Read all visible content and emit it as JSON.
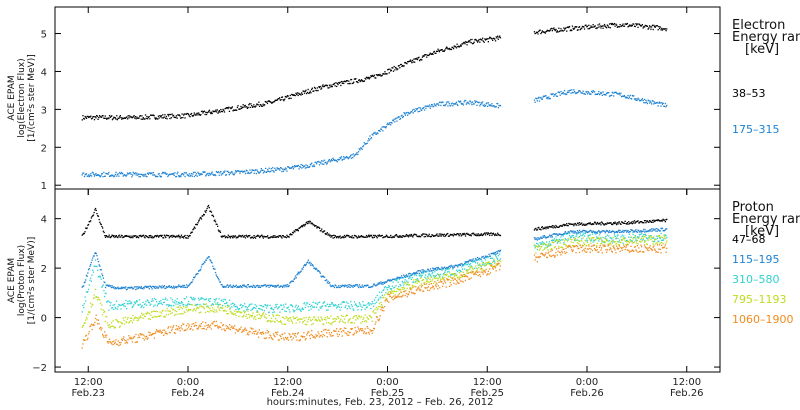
{
  "chart_data": [
    {
      "type": "scatter",
      "panel": "electron",
      "ylabel_lines": [
        "ACE EPAM",
        "log(Electron Flux)",
        "[1/(cm²s ster MeV)]"
      ],
      "ylim": [
        0.9,
        5.7
      ],
      "yticks": [
        1,
        2,
        3,
        4,
        5
      ],
      "legend_title": [
        "Electron",
        "Energy ranges",
        "[keV]"
      ],
      "series": [
        {
          "name": "38–53",
          "color": "#000000",
          "x": [
            0.8,
            2.4,
            4.0,
            6.5,
            8.0,
            9.5,
            10.5,
            11.5,
            12.5,
            13.4,
            13.9,
            14.4,
            15.5,
            17.0,
            18.4
          ],
          "y": [
            2.8,
            2.8,
            2.85,
            3.2,
            3.6,
            3.85,
            4.2,
            4.55,
            4.8,
            4.9,
            null,
            5.05,
            5.15,
            5.25,
            5.15
          ]
        },
        {
          "name": "175–315",
          "color": "#1e82d2",
          "x": [
            0.8,
            2.4,
            4.0,
            5.5,
            7.0,
            8.0,
            9.0,
            9.5,
            10.5,
            11.5,
            12.5,
            13.4,
            13.9,
            14.4,
            15.5,
            17.0,
            18.4
          ],
          "y": [
            1.3,
            1.3,
            1.3,
            1.35,
            1.45,
            1.6,
            1.8,
            2.3,
            2.9,
            3.15,
            3.2,
            3.1,
            null,
            3.25,
            3.5,
            3.4,
            3.1
          ]
        }
      ]
    },
    {
      "type": "scatter",
      "panel": "proton",
      "ylabel_lines": [
        "ACE EPAM",
        "log(Proton Flux)",
        "[1/(cm²s ster MeV)]"
      ],
      "ylim": [
        -2.2,
        5.2
      ],
      "yticks": [
        -2,
        0,
        2,
        4
      ],
      "legend_title": [
        "Proton",
        "Energy ranges",
        "[keV]"
      ],
      "xlabel": "hours:minutes, Feb. 23, 2012 – Feb. 26, 2012",
      "xticks": [
        {
          "x": 1,
          "time": "12:00",
          "date": "Feb.23"
        },
        {
          "x": 4,
          "time": "0:00",
          "date": "Feb.24"
        },
        {
          "x": 7,
          "time": "12:00",
          "date": "Feb.24"
        },
        {
          "x": 10,
          "time": "0:00",
          "date": "Feb.25"
        },
        {
          "x": 13,
          "time": "12:00",
          "date": "Feb.25"
        },
        {
          "x": 16,
          "time": "0:00",
          "date": "Feb.26"
        },
        {
          "x": 19,
          "time": "12:00",
          "date": "Feb.26"
        }
      ],
      "series": [
        {
          "name": "47–68",
          "color": "#000000",
          "x": [
            0.8,
            1.2,
            1.5,
            2.0,
            4.0,
            4.6,
            5.0,
            7.0,
            7.6,
            8.3,
            9.5,
            11.0,
            13.4,
            13.9,
            14.4,
            15.5,
            17.0,
            18.4
          ],
          "y": [
            3.3,
            4.4,
            3.3,
            3.3,
            3.3,
            4.5,
            3.3,
            3.3,
            3.9,
            3.3,
            3.3,
            3.35,
            3.4,
            null,
            3.6,
            3.8,
            3.85,
            3.95
          ]
        },
        {
          "name": "115–195",
          "color": "#1e82d2",
          "x": [
            0.8,
            1.2,
            1.5,
            2.0,
            4.0,
            4.6,
            5.0,
            7.0,
            7.6,
            8.3,
            9.5,
            10.0,
            11.0,
            12.0,
            13.4,
            13.9,
            14.4,
            15.5,
            17.0,
            18.4
          ],
          "y": [
            1.2,
            2.7,
            1.3,
            1.2,
            1.3,
            2.5,
            1.3,
            1.3,
            2.3,
            1.3,
            1.3,
            1.5,
            1.9,
            2.1,
            2.7,
            null,
            3.2,
            3.5,
            3.5,
            3.6
          ]
        },
        {
          "name": "310–580",
          "color": "#2fd1d1",
          "x": [
            0.8,
            1.2,
            1.6,
            2.5,
            4.0,
            5.0,
            6.0,
            7.0,
            8.0,
            9.5,
            10.0,
            11.0,
            12.0,
            13.4,
            13.9,
            14.4,
            15.5,
            17.0,
            18.4
          ],
          "y": [
            0.3,
            2.2,
            0.5,
            0.6,
            0.7,
            0.6,
            0.4,
            0.4,
            0.5,
            0.5,
            1.3,
            1.7,
            1.9,
            2.5,
            null,
            2.9,
            3.3,
            3.2,
            3.3
          ]
        },
        {
          "name": "795–1193",
          "color": "#bddc1c",
          "x": [
            0.8,
            1.2,
            1.6,
            2.5,
            4.0,
            5.0,
            6.0,
            7.0,
            8.0,
            9.5,
            10.0,
            11.0,
            12.0,
            13.4,
            13.9,
            14.4,
            15.5,
            17.0,
            18.4
          ],
          "y": [
            -0.4,
            1.0,
            -0.3,
            0.0,
            0.4,
            0.4,
            0.1,
            -0.1,
            -0.1,
            0.0,
            1.0,
            1.5,
            1.7,
            2.3,
            null,
            2.8,
            3.1,
            3.1,
            3.2
          ]
        },
        {
          "name": "1060–1900",
          "color": "#f08c1e",
          "x": [
            0.8,
            1.2,
            1.6,
            2.5,
            4.0,
            5.0,
            6.0,
            7.0,
            8.0,
            9.5,
            10.0,
            11.0,
            12.0,
            13.4,
            13.9,
            14.4,
            15.5,
            17.0,
            18.4
          ],
          "y": [
            -1.1,
            0.0,
            -1.0,
            -0.8,
            -0.3,
            -0.3,
            -0.6,
            -0.8,
            -0.6,
            -0.5,
            0.8,
            1.2,
            1.5,
            2.1,
            null,
            2.4,
            2.8,
            2.8,
            2.8
          ]
        }
      ]
    }
  ]
}
